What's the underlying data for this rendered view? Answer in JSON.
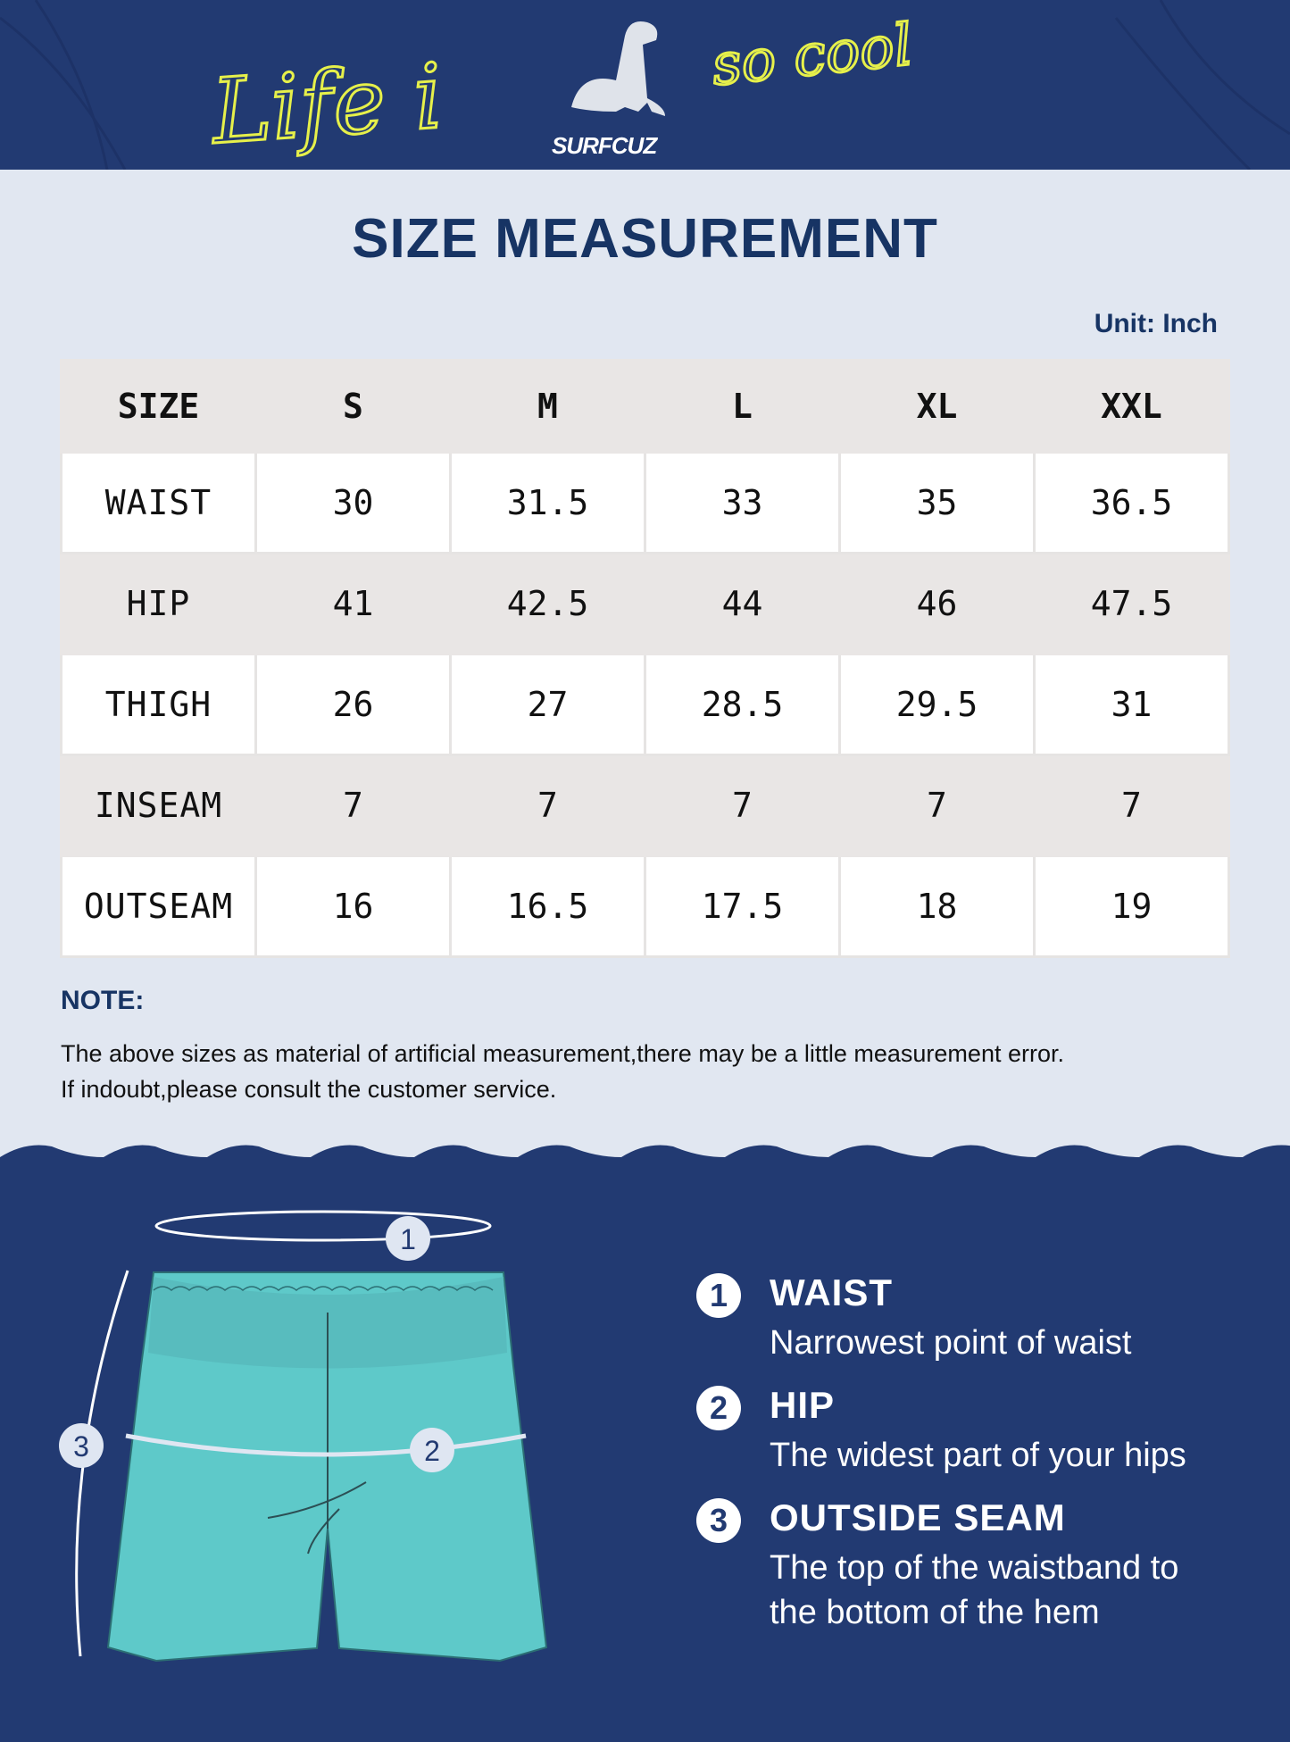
{
  "logo": {
    "script_text": "Life is so cool",
    "brand": "SURFCUZ"
  },
  "colors": {
    "navy": "#223a72",
    "title": "#173464",
    "accent_yellow": "#e6f04a",
    "shorts": "#5ec9c9",
    "background": "#e1e7f1"
  },
  "title": "SIZE MEASUREMENT",
  "unit": "Unit: Inch",
  "table": {
    "headers": [
      "SIZE",
      "S",
      "M",
      "L",
      "XL",
      "XXL"
    ],
    "rows": [
      {
        "label": "WAIST",
        "values": [
          "30",
          "31.5",
          "33",
          "35",
          "36.5"
        ]
      },
      {
        "label": "HIP",
        "values": [
          "41",
          "42.5",
          "44",
          "46",
          "47.5"
        ]
      },
      {
        "label": "THIGH",
        "values": [
          "26",
          "27",
          "28.5",
          "29.5",
          "31"
        ]
      },
      {
        "label": "INSEAM",
        "values": [
          "7",
          "7",
          "7",
          "7",
          "7"
        ]
      },
      {
        "label": "OUTSEAM",
        "values": [
          "16",
          "16.5",
          "17.5",
          "18",
          "19"
        ]
      }
    ]
  },
  "note": {
    "heading": "NOTE:",
    "line1": "The above sizes as material of artificial measurement,there may be a little measurement error.",
    "line2": "If indoubt,please consult the customer service."
  },
  "diagram_markers": [
    "1",
    "2",
    "3"
  ],
  "legend": [
    {
      "num": "1",
      "title": "WAIST",
      "desc": [
        "Narrowest point of waist"
      ]
    },
    {
      "num": "2",
      "title": "HIP",
      "desc": [
        "The widest part of your hips"
      ]
    },
    {
      "num": "3",
      "title": "OUTSIDE SEAM",
      "desc": [
        "The top of the waistband to",
        "the bottom of the hem"
      ]
    }
  ]
}
